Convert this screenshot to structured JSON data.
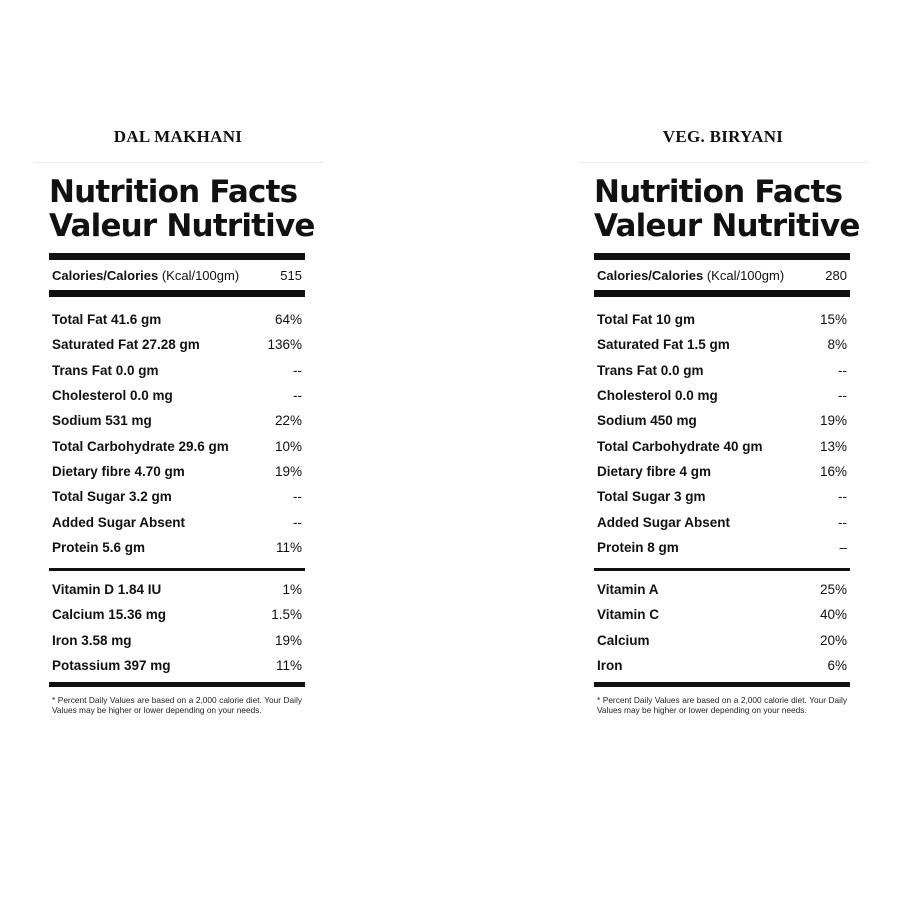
{
  "panels": [
    {
      "product_name": "DAL MAKHANI",
      "title_en": "Nutrition Facts",
      "title_fr": "Valeur Nutritive",
      "calories_label": "Calories/Calories",
      "calories_unit": "(Kcal/100gm)",
      "calories_value": "515",
      "nutrients": [
        {
          "label": "Total Fat 41.6 gm",
          "value": "64%"
        },
        {
          "label": "Saturated Fat 27.28 gm",
          "value": "136%"
        },
        {
          "label": "Trans Fat 0.0 gm",
          "value": "--"
        },
        {
          "label": "Cholesterol 0.0 mg",
          "value": "--"
        },
        {
          "label": "Sodium 531 mg",
          "value": "22%"
        },
        {
          "label": "Total Carbohydrate 29.6 gm",
          "value": "10%"
        },
        {
          "label": "Dietary fibre 4.70 gm",
          "value": "19%"
        },
        {
          "label": "Total Sugar 3.2 gm",
          "value": "--"
        },
        {
          "label": "Added Sugar Absent",
          "value": "--"
        },
        {
          "label": "Protein 5.6 gm",
          "value": "11%"
        }
      ],
      "vitamins": [
        {
          "label": "Vitamin D 1.84 IU",
          "value": "1%"
        },
        {
          "label": "Calcium 15.36 mg",
          "value": "1.5%"
        },
        {
          "label": "Iron 3.58 mg",
          "value": "19%"
        },
        {
          "label": "Potassium 397 mg",
          "value": "11%"
        }
      ],
      "footnote": "* Percent Daily Values are based on a 2,000 calorie diet. Your Daily Values may be higher or lower depending on your needs."
    },
    {
      "product_name": "VEG. BIRYANI",
      "title_en": "Nutrition Facts",
      "title_fr": "Valeur Nutritive",
      "calories_label": "Calories/Calories",
      "calories_unit": "(Kcal/100gm)",
      "calories_value": "280",
      "nutrients": [
        {
          "label": "Total Fat 10 gm",
          "value": "15%"
        },
        {
          "label": "Saturated Fat 1.5 gm",
          "value": "8%"
        },
        {
          "label": "Trans Fat 0.0 gm",
          "value": "--"
        },
        {
          "label": "Cholesterol 0.0 mg",
          "value": "--"
        },
        {
          "label": "Sodium 450 mg",
          "value": "19%"
        },
        {
          "label": "Total Carbohydrate 40 gm",
          "value": "13%"
        },
        {
          "label": "Dietary fibre 4 gm",
          "value": "16%"
        },
        {
          "label": "Total Sugar 3 gm",
          "value": "--"
        },
        {
          "label": "Added Sugar Absent",
          "value": "--"
        },
        {
          "label": "Protein 8 gm",
          "value": "–"
        }
      ],
      "vitamins": [
        {
          "label": "Vitamin A",
          "value": "25%"
        },
        {
          "label": "Vitamin C",
          "value": "40%"
        },
        {
          "label": "Calcium",
          "value": "20%"
        },
        {
          "label": "Iron",
          "value": "6%"
        }
      ],
      "footnote": "* Percent Daily Values are based on a 2,000 calorie diet. Your Daily Values may be higher or lower depending on your needs."
    }
  ]
}
